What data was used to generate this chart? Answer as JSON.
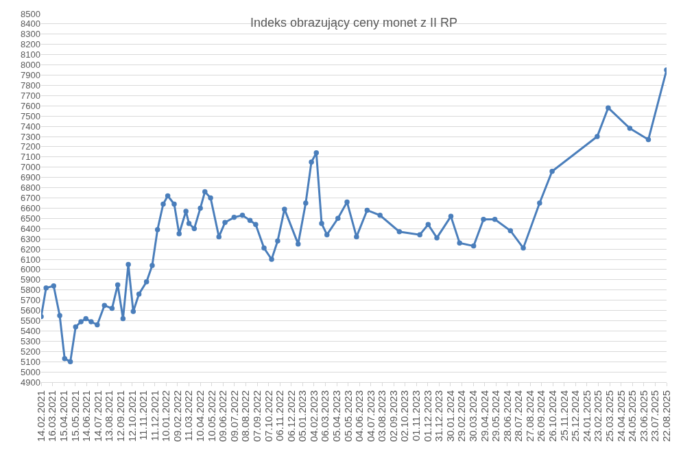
{
  "chart_data": {
    "type": "line",
    "title": "Indeks obrazujący ceny monet z II RP",
    "x": [
      "2021-02-14",
      "2021-02-27",
      "2021-03-19",
      "2021-04-04",
      "2021-04-17",
      "2021-05-02",
      "2021-05-16",
      "2021-05-30",
      "2021-06-12",
      "2021-06-26",
      "2021-07-12",
      "2021-07-31",
      "2021-08-20",
      "2021-09-04",
      "2021-09-18",
      "2021-10-02",
      "2021-10-15",
      "2021-10-30",
      "2021-11-19",
      "2021-12-04",
      "2021-12-18",
      "2022-01-02",
      "2022-01-14",
      "2022-01-31",
      "2022-02-13",
      "2022-03-03",
      "2022-03-11",
      "2022-03-25",
      "2022-04-10",
      "2022-04-22",
      "2022-05-07",
      "2022-05-29",
      "2022-06-14",
      "2022-07-08",
      "2022-07-30",
      "2022-08-19",
      "2022-09-03",
      "2022-09-25",
      "2022-10-15",
      "2022-10-31",
      "2022-11-18",
      "2022-12-24",
      "2023-01-13",
      "2023-01-28",
      "2023-02-10",
      "2023-02-24",
      "2023-03-10",
      "2023-04-08",
      "2023-05-02",
      "2023-05-27",
      "2023-06-24",
      "2023-07-28",
      "2023-09-17",
      "2023-11-10",
      "2023-12-02",
      "2023-12-25",
      "2024-01-31",
      "2024-02-23",
      "2024-03-31",
      "2024-04-26",
      "2024-05-26",
      "2024-07-06",
      "2024-08-09",
      "2024-09-21",
      "2024-10-24",
      "2025-02-20",
      "2025-03-21",
      "2025-05-17",
      "2025-07-05",
      "2025-08-22"
    ],
    "series": [
      {
        "color": "#4a7ebb",
        "values": [
          5540,
          5820,
          5840,
          5550,
          5130,
          5100,
          5440,
          5490,
          5520,
          5490,
          5460,
          5650,
          5620,
          5850,
          5520,
          6050,
          5590,
          5760,
          5880,
          6040,
          6390,
          6640,
          6720,
          6640,
          6350,
          6570,
          6450,
          6400,
          6600,
          6760,
          6700,
          6320,
          6460,
          6510,
          6530,
          6480,
          6440,
          6210,
          6100,
          6280,
          6590,
          6250,
          6650,
          7050,
          7140,
          6450,
          6340,
          6500,
          6660,
          6320,
          6580,
          6530,
          6370,
          6340,
          6440,
          6310,
          6520,
          6260,
          6230,
          6490,
          6490,
          6380,
          6210,
          6650,
          6960,
          7300,
          7580,
          7380,
          7270,
          7950
        ]
      }
    ],
    "xlim": [
      "2021-02-14",
      "2025-08-22"
    ],
    "xticks": [
      {
        "value": "2021-02-14",
        "label": "14.02.2021"
      },
      {
        "value": "2021-03-16",
        "label": "16.03.2021"
      },
      {
        "value": "2021-04-15",
        "label": "15.04.2021"
      },
      {
        "value": "2021-05-15",
        "label": "15.05.2021"
      },
      {
        "value": "2021-06-14",
        "label": "14.06.2021"
      },
      {
        "value": "2021-07-14",
        "label": "14.07.2021"
      },
      {
        "value": "2021-08-13",
        "label": "13.08.2021"
      },
      {
        "value": "2021-09-12",
        "label": "12.09.2021"
      },
      {
        "value": "2021-10-12",
        "label": "12.10.2021"
      },
      {
        "value": "2021-11-11",
        "label": "11.11.2021"
      },
      {
        "value": "2021-12-11",
        "label": "11.12.2021"
      },
      {
        "value": "2022-01-10",
        "label": "10.01.2022"
      },
      {
        "value": "2022-02-09",
        "label": "09.02.2022"
      },
      {
        "value": "2022-03-11",
        "label": "11.03.2022"
      },
      {
        "value": "2022-04-10",
        "label": "10.04.2022"
      },
      {
        "value": "2022-05-10",
        "label": "10.05.2022"
      },
      {
        "value": "2022-06-09",
        "label": "09.06.2022"
      },
      {
        "value": "2022-07-09",
        "label": "09.07.2022"
      },
      {
        "value": "2022-08-08",
        "label": "08.08.2022"
      },
      {
        "value": "2022-09-07",
        "label": "07.09.2022"
      },
      {
        "value": "2022-10-07",
        "label": "07.10.2022"
      },
      {
        "value": "2022-11-06",
        "label": "06.11.2022"
      },
      {
        "value": "2022-12-06",
        "label": "06.12.2022"
      },
      {
        "value": "2023-01-05",
        "label": "05.01.2023"
      },
      {
        "value": "2023-02-04",
        "label": "04.02.2023"
      },
      {
        "value": "2023-03-06",
        "label": "06.03.2023"
      },
      {
        "value": "2023-04-05",
        "label": "05.04.2023"
      },
      {
        "value": "2023-05-05",
        "label": "05.05.2023"
      },
      {
        "value": "2023-06-04",
        "label": "04.06.2023"
      },
      {
        "value": "2023-07-04",
        "label": "04.07.2023"
      },
      {
        "value": "2023-08-03",
        "label": "03.08.2023"
      },
      {
        "value": "2023-09-02",
        "label": "02.09.2023"
      },
      {
        "value": "2023-10-02",
        "label": "02.10.2023"
      },
      {
        "value": "2023-11-01",
        "label": "01.11.2023"
      },
      {
        "value": "2023-12-01",
        "label": "01.12.2023"
      },
      {
        "value": "2023-12-31",
        "label": "31.12.2023"
      },
      {
        "value": "2024-01-30",
        "label": "30.01.2024"
      },
      {
        "value": "2024-02-29",
        "label": "29.02.2024"
      },
      {
        "value": "2024-03-30",
        "label": "30.03.2024"
      },
      {
        "value": "2024-04-29",
        "label": "29.04.2024"
      },
      {
        "value": "2024-05-29",
        "label": "29.05.2024"
      },
      {
        "value": "2024-06-28",
        "label": "28.06.2024"
      },
      {
        "value": "2024-07-28",
        "label": "28.07.2024"
      },
      {
        "value": "2024-08-27",
        "label": "27.08.2024"
      },
      {
        "value": "2024-09-26",
        "label": "26.09.2024"
      },
      {
        "value": "2024-10-26",
        "label": "26.10.2024"
      },
      {
        "value": "2024-11-25",
        "label": "25.11.2024"
      },
      {
        "value": "2024-12-25",
        "label": "25.12.2024"
      },
      {
        "value": "2025-01-24",
        "label": "24.01.2025"
      },
      {
        "value": "2025-02-23",
        "label": "23.02.2025"
      },
      {
        "value": "2025-03-25",
        "label": "25.03.2025"
      },
      {
        "value": "2025-04-24",
        "label": "24.04.2025"
      },
      {
        "value": "2025-05-24",
        "label": "24.05.2025"
      },
      {
        "value": "2025-06-23",
        "label": "23.06.2025"
      },
      {
        "value": "2025-07-23",
        "label": "23.07.2025"
      },
      {
        "value": "2025-08-22",
        "label": "22.08.2025"
      }
    ],
    "ylim": [
      4900,
      8500
    ],
    "yticks": [
      4900,
      5000,
      5100,
      5200,
      5300,
      5400,
      5500,
      5600,
      5700,
      5800,
      5900,
      6000,
      6100,
      6200,
      6300,
      6400,
      6500,
      6600,
      6700,
      6800,
      6900,
      7000,
      7100,
      7200,
      7300,
      7400,
      7500,
      7600,
      7700,
      7800,
      7900,
      8000,
      8100,
      8200,
      8300,
      8400,
      8500
    ],
    "grid": "y",
    "marker": "circle",
    "line_style": "solid"
  }
}
